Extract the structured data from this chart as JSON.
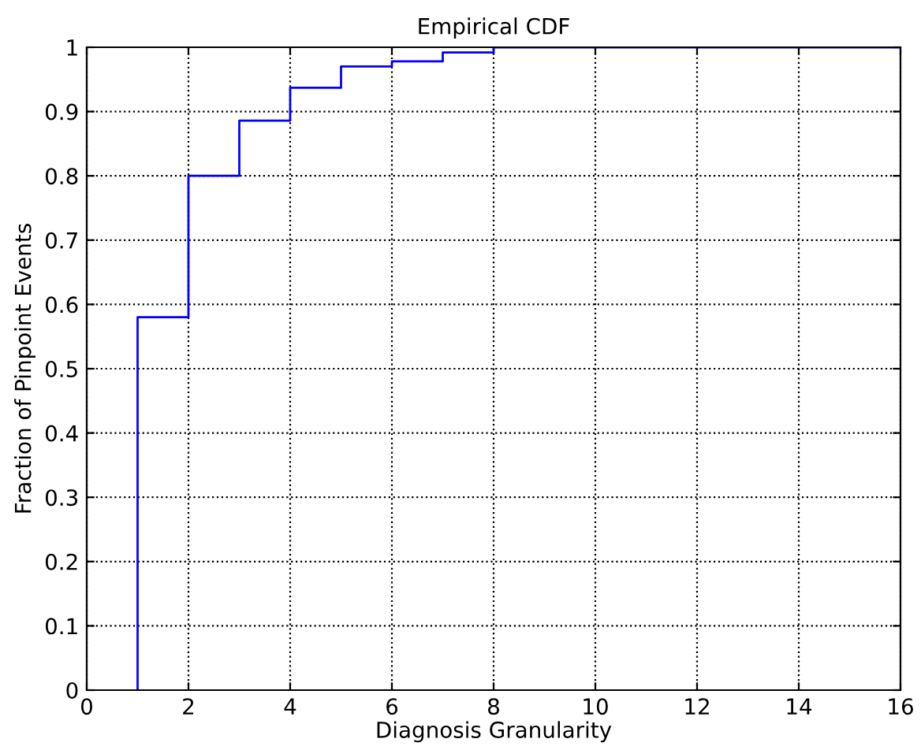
{
  "chart_data": {
    "type": "step",
    "title": "Empirical CDF",
    "xlabel": "Diagnosis Granularity",
    "ylabel": "Fraction of Pinpoint Events",
    "series": [
      {
        "color": "#0000ff",
        "x": [
          1,
          1,
          2,
          3,
          4,
          5,
          6,
          7,
          8,
          16
        ],
        "values": [
          0,
          0.58,
          0.8,
          0.886,
          0.937,
          0.97,
          0.978,
          0.992,
          1,
          1
        ]
      }
    ],
    "xlim": [
      0,
      16
    ],
    "xticks": [
      0,
      2,
      4,
      6,
      8,
      10,
      12,
      14,
      16
    ],
    "ylim": [
      0,
      1
    ],
    "yticks": [
      0,
      0.1,
      0.2,
      0.3,
      0.4,
      0.5,
      0.6,
      0.7,
      0.8,
      0.9,
      1
    ],
    "grid": true,
    "line_style": "solid",
    "marker": "none",
    "legend": false
  }
}
